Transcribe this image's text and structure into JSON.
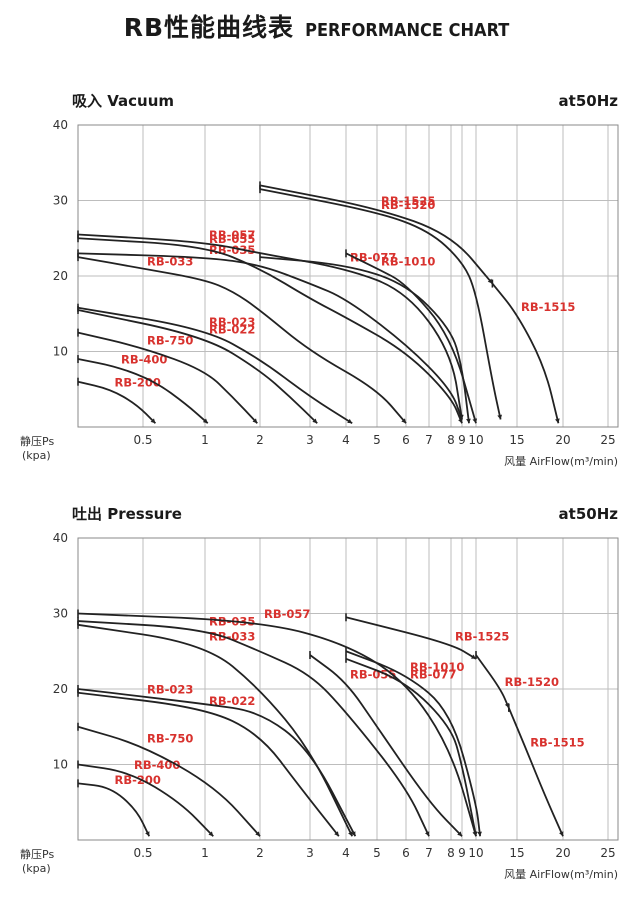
{
  "title_cn": "RB性能曲线表",
  "title_en": "PERFORMANCE CHART",
  "colors": {
    "curve": "#222222",
    "label": "#d8322e",
    "grid": "#bdbdbd"
  },
  "chart_data": [
    {
      "type": "line",
      "section": "吸入 Vacuum",
      "frequency": "at50Hz",
      "y_axis_top": "静压Ps",
      "y_axis_bottom": "(kpa)",
      "xlabel": "风量 AirFlow(m³/min)",
      "x_scale": "nonlinear",
      "x_ticks": [
        "0.5",
        "1",
        "2",
        "3",
        "4",
        "5",
        "6",
        "7",
        "8",
        "9",
        "10",
        "15",
        "20",
        "25"
      ],
      "y_ticks": [
        10,
        20,
        30,
        40
      ],
      "ylim": [
        0,
        40
      ],
      "grid": true,
      "series": [
        {
          "name": "RB-200",
          "points": [
            [
              0,
              6
            ],
            [
              0.25,
              5
            ],
            [
              0.45,
              3
            ],
            [
              0.6,
              0.5
            ]
          ]
        },
        {
          "name": "RB-400",
          "points": [
            [
              0,
              9
            ],
            [
              0.3,
              8
            ],
            [
              0.6,
              6
            ],
            [
              0.85,
              3
            ],
            [
              1.05,
              0.5
            ]
          ]
        },
        {
          "name": "RB-750",
          "points": [
            [
              0,
              12.5
            ],
            [
              0.5,
              10.5
            ],
            [
              1,
              7.5
            ],
            [
              1.5,
              4
            ],
            [
              1.95,
              0.5
            ]
          ]
        },
        {
          "name": "RB-022",
          "points": [
            [
              0,
              15.5
            ],
            [
              1,
              12
            ],
            [
              2,
              7.5
            ],
            [
              2.6,
              4
            ],
            [
              3.2,
              0.5
            ]
          ]
        },
        {
          "name": "RB-023",
          "points": [
            [
              0,
              15.8
            ],
            [
              1,
              13
            ],
            [
              2,
              9
            ],
            [
              3,
              4
            ],
            [
              4.2,
              0.5
            ]
          ]
        },
        {
          "name": "RB-033",
          "points": [
            [
              0,
              22.5
            ],
            [
              0.5,
              21
            ],
            [
              1,
              19.5
            ],
            [
              1.5,
              18
            ],
            [
              2,
              15.5
            ],
            [
              3,
              10
            ],
            [
              5,
              5
            ],
            [
              6,
              0.5
            ]
          ]
        },
        {
          "name": "RB-035",
          "points": [
            [
              0,
              23
            ],
            [
              1,
              22.5
            ],
            [
              2,
              21.5
            ],
            [
              3,
              19
            ],
            [
              4,
              17
            ],
            [
              6,
              11
            ],
            [
              8,
              5
            ],
            [
              9,
              1
            ]
          ]
        },
        {
          "name": "RB-055",
          "points": [
            [
              0,
              25
            ],
            [
              1,
              24
            ],
            [
              2,
              21
            ],
            [
              3,
              17
            ],
            [
              4,
              14.5
            ],
            [
              6,
              10
            ],
            [
              8,
              4
            ],
            [
              9,
              0.5
            ]
          ]
        },
        {
          "name": "RB-057",
          "points": [
            [
              0,
              25.5
            ],
            [
              1,
              24.5
            ],
            [
              2,
              23
            ],
            [
              4,
              21
            ],
            [
              6,
              18
            ],
            [
              8,
              10
            ],
            [
              9,
              1
            ]
          ]
        },
        {
          "name": "RB-077",
          "points": [
            [
              2,
              22.5
            ],
            [
              4,
              21.5
            ],
            [
              6,
              19
            ],
            [
              8,
              13
            ],
            [
              9,
              8
            ],
            [
              9.5,
              0.5
            ]
          ]
        },
        {
          "name": "RB-1010",
          "points": [
            [
              4,
              23
            ],
            [
              5,
              21
            ],
            [
              6,
              19
            ],
            [
              8,
              12
            ],
            [
              10,
              0.5
            ]
          ]
        },
        {
          "name": "RB-1520",
          "points": [
            [
              2,
              31.5
            ],
            [
              5,
              28.5
            ],
            [
              7,
              26
            ],
            [
              9,
              22
            ],
            [
              10,
              18
            ],
            [
              12,
              6
            ],
            [
              13,
              1
            ]
          ]
        },
        {
          "name": "RB-1525",
          "points": [
            [
              2,
              32
            ],
            [
              5,
              29
            ],
            [
              8,
              25.5
            ],
            [
              12,
              19
            ]
          ]
        },
        {
          "name": "RB-1515",
          "points": [
            [
              12,
              19
            ],
            [
              15,
              15
            ],
            [
              18,
              8
            ],
            [
              19.5,
              0.5
            ]
          ]
        }
      ]
    },
    {
      "type": "line",
      "section": "吐出 Pressure",
      "frequency": "at50Hz",
      "y_axis_top": "静压Ps",
      "y_axis_bottom": "(kpa)",
      "xlabel": "风量 AirFlow(m³/min)",
      "x_scale": "nonlinear",
      "x_ticks": [
        "0.5",
        "1",
        "2",
        "3",
        "4",
        "5",
        "6",
        "7",
        "8",
        "9",
        "10",
        "15",
        "20",
        "25"
      ],
      "y_ticks": [
        10,
        20,
        30,
        40
      ],
      "ylim": [
        0,
        40
      ],
      "grid": true,
      "series": [
        {
          "name": "RB-200",
          "points": [
            [
              0,
              7.5
            ],
            [
              0.25,
              7
            ],
            [
              0.45,
              4
            ],
            [
              0.55,
              0.5
            ]
          ]
        },
        {
          "name": "RB-400",
          "points": [
            [
              0,
              10
            ],
            [
              0.4,
              9
            ],
            [
              0.8,
              5
            ],
            [
              1.15,
              0.5
            ]
          ]
        },
        {
          "name": "RB-750",
          "points": [
            [
              0,
              15
            ],
            [
              0.5,
              12.5
            ],
            [
              1.2,
              7
            ],
            [
              2,
              0.5
            ]
          ]
        },
        {
          "name": "RB-022",
          "points": [
            [
              0,
              19.5
            ],
            [
              1,
              17.5
            ],
            [
              2,
              14
            ],
            [
              2.8,
              7
            ],
            [
              3.8,
              0.5
            ]
          ]
        },
        {
          "name": "RB-023",
          "points": [
            [
              0,
              20
            ],
            [
              0.5,
              19
            ],
            [
              1,
              18
            ],
            [
              2,
              17
            ],
            [
              3,
              12
            ],
            [
              4.3,
              0.5
            ]
          ]
        },
        {
          "name": "RB-033",
          "points": [
            [
              0,
              28.5
            ],
            [
              1,
              26
            ],
            [
              2,
              20
            ],
            [
              3,
              12
            ],
            [
              4.2,
              0.5
            ]
          ]
        },
        {
          "name": "RB-035",
          "points": [
            [
              0,
              29
            ],
            [
              1,
              28
            ],
            [
              2,
              25
            ],
            [
              3,
              22
            ],
            [
              4,
              17
            ],
            [
              6,
              7
            ],
            [
              7,
              0.5
            ]
          ]
        },
        {
          "name": "RB-055",
          "points": [
            [
              3,
              24.5
            ],
            [
              4,
              21
            ],
            [
              5,
              15
            ],
            [
              7,
              5
            ],
            [
              9,
              0.5
            ]
          ]
        },
        {
          "name": "RB-057",
          "points": [
            [
              0,
              30
            ],
            [
              2,
              29
            ],
            [
              4,
              26
            ],
            [
              6,
              21
            ],
            [
              8,
              12
            ],
            [
              10,
              0.5
            ]
          ]
        },
        {
          "name": "RB-077",
          "points": [
            [
              4,
              24
            ],
            [
              6,
              21
            ],
            [
              8,
              15
            ],
            [
              9,
              10
            ],
            [
              10,
              0.5
            ]
          ]
        },
        {
          "name": "RB-1010",
          "points": [
            [
              4,
              25
            ],
            [
              6,
              22
            ],
            [
              8,
              17
            ],
            [
              10,
              5
            ],
            [
              10.5,
              0.5
            ]
          ]
        },
        {
          "name": "RB-1525",
          "points": [
            [
              4,
              29.5
            ],
            [
              8,
              26
            ],
            [
              10,
              24
            ]
          ]
        },
        {
          "name": "RB-1520",
          "points": [
            [
              10,
              24.5
            ],
            [
              13,
              20
            ],
            [
              14,
              17.5
            ]
          ]
        },
        {
          "name": "RB-1515",
          "points": [
            [
              14,
              17.5
            ],
            [
              16,
              12
            ],
            [
              18,
              6
            ],
            [
              20,
              0.5
            ]
          ]
        }
      ]
    }
  ]
}
